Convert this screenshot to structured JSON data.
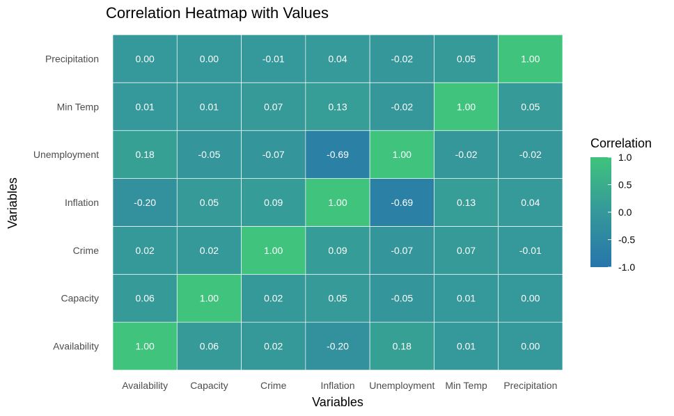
{
  "chart_data": {
    "type": "heatmap",
    "title": "Correlation Heatmap with Values",
    "xlabel": "Variables",
    "ylabel": "Variables",
    "variables": [
      "Availability",
      "Capacity",
      "Crime",
      "Inflation",
      "Unemployment",
      "Min Temp",
      "Precipitation"
    ],
    "matrix": [
      [
        1.0,
        0.06,
        0.02,
        -0.2,
        0.18,
        0.01,
        0.0
      ],
      [
        0.06,
        1.0,
        0.02,
        0.05,
        -0.05,
        0.01,
        0.0
      ],
      [
        0.02,
        0.02,
        1.0,
        0.09,
        -0.07,
        0.07,
        -0.01
      ],
      [
        -0.2,
        0.05,
        0.09,
        1.0,
        -0.69,
        0.13,
        0.04
      ],
      [
        0.18,
        -0.05,
        -0.07,
        -0.69,
        1.0,
        -0.02,
        -0.02
      ],
      [
        0.01,
        0.01,
        0.07,
        0.13,
        -0.02,
        1.0,
        0.05
      ],
      [
        0.0,
        0.0,
        -0.01,
        0.04,
        -0.02,
        0.05,
        1.0
      ]
    ],
    "labels": [
      [
        "1.00",
        "0.06",
        "0.02",
        "-0.20",
        "0.18",
        "0.01",
        "0.00"
      ],
      [
        "0.06",
        "1.00",
        "0.02",
        "0.05",
        "-0.05",
        "0.01",
        "0.00"
      ],
      [
        "0.02",
        "0.02",
        "1.00",
        "0.09",
        "-0.07",
        "0.07",
        "-0.01"
      ],
      [
        "-0.20",
        "0.05",
        "0.09",
        "1.00",
        "-0.69",
        "0.13",
        "0.04"
      ],
      [
        "0.18",
        "-0.05",
        "-0.07",
        "-0.69",
        "1.00",
        "-0.02",
        "-0.02"
      ],
      [
        "0.01",
        "0.01",
        "0.07",
        "0.13",
        "-0.02",
        "1.00",
        "0.05"
      ],
      [
        "0.00",
        "0.00",
        "-0.01",
        "0.04",
        "-0.02",
        "0.05",
        "1.00"
      ]
    ],
    "legend": {
      "title": "Correlation",
      "placement": "right",
      "range": [
        -1.0,
        1.0
      ],
      "ticks": [
        "1.0",
        "0.5",
        "0.0",
        "-0.5",
        "-1.0"
      ],
      "tick_values": [
        1.0,
        0.5,
        0.0,
        -0.5,
        -1.0
      ],
      "color_low": "#2775ab",
      "color_mid": "#35989a",
      "color_high": "#3fc37d"
    }
  }
}
